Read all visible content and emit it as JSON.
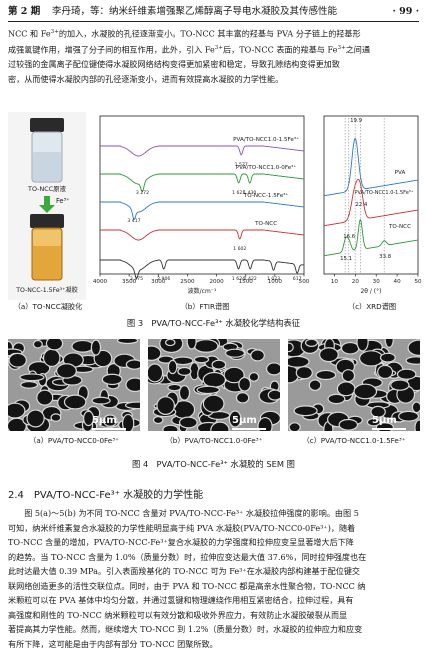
{
  "header": {
    "issue": "第 2 期",
    "running_title": "李丹琦，等：纳米纤维素增强聚乙烯醇离子导电水凝胶及其传感性能",
    "page_number": "· 99 ·"
  },
  "paragraph_top": {
    "lines": [
      [
        "NCC 和 Fe",
        "3+",
        "的加入，水凝胶的孔径逐渐变小。TO-NCC 其丰富的羟基与 PVA 分子链上的羟基形"
      ],
      [
        "成强氢键作用，增强了分子间的相互作用，此外，引入 Fe",
        "3+",
        "后，TO-NCC 表面的羧基与 Fe",
        "3+",
        "之间通"
      ],
      [
        "过较强的金属离子配位键使得水凝胶网络结构变得更加紧密和稳定，导致孔隙结构变得更加致"
      ],
      [
        "密，从而使得水凝胶内部的孔径逐渐变小，进而有效提高水凝胶的力学性能。"
      ]
    ]
  },
  "figure3": {
    "photo": {
      "label_top": "TO-NCC原液",
      "arrow_label": "Fe³⁺",
      "label_bottom": "TO-NCC-1.5Fe³⁺凝胶",
      "caption": "（a）TO-NCC凝胶化"
    },
    "ftir_caption": "（b）FTIR谱图",
    "xrd_caption": "（c）XRD谱图",
    "title": "图 3　PVA/TO-NCC-Fe³⁺ 水凝胶化学结构表征"
  },
  "chart_data": [
    {
      "type": "line",
      "xlabel": "波数/cm⁻¹",
      "ylabel": "",
      "xlim": [
        4000,
        500
      ],
      "x_ticks": [
        4000,
        3500,
        3000,
        2500,
        2000,
        1500,
        1000,
        500
      ],
      "grid": false,
      "series": [
        {
          "name": "PVA/TO-NCC1.0-1.5Fe³⁺",
          "color": "#8a52c8",
          "offset": 4,
          "peaks": [
            {
              "x": 1577,
              "label": "1 577"
            }
          ]
        },
        {
          "name": "PVA/TO-NCC1.0-0Fe³⁺",
          "color": "#2a9a3a",
          "offset": 3,
          "peaks": [
            {
              "x": 3272,
              "label": "3 272"
            },
            {
              "x": 1621,
              "label": "1 621"
            },
            {
              "x": 1430,
              "label": "1 430"
            }
          ]
        },
        {
          "name": "TO-NCC-1.5Fe³⁺",
          "color": "#2a7ad0",
          "offset": 2,
          "peaks": [
            {
              "x": 3417,
              "label": "3 417"
            }
          ]
        },
        {
          "name": "TO-NCC",
          "color": "#d03030",
          "offset": 1,
          "peaks": [
            {
              "x": 1602,
              "label": "1 602"
            }
          ]
        },
        {
          "name": "",
          "color": "#333333",
          "offset": 0,
          "peaks": [
            {
              "x": 3375,
              "label": "3 375"
            },
            {
              "x": 2906,
              "label": "2 906"
            },
            {
              "x": 1624,
              "label": "1 624"
            },
            {
              "x": 1422,
              "label": "1 422"
            },
            {
              "x": 1023,
              "label": "1 023"
            },
            {
              "x": 617,
              "label": "617"
            }
          ]
        }
      ]
    },
    {
      "type": "line",
      "xlabel": "2θ / (°)",
      "ylabel": "",
      "xlim": [
        5,
        50
      ],
      "x_ticks": [
        10,
        20,
        30,
        40,
        50
      ],
      "grid": false,
      "series": [
        {
          "name": "PVA",
          "color": "#2a7ad0",
          "offset": 2
        },
        {
          "name": "PVA/TO-NCC1.0-1.5Fe³⁺",
          "color": "#d03030",
          "offset": 1
        },
        {
          "name": "TO-NCC",
          "color": "#2a9a3a",
          "offset": 0
        }
      ],
      "annotations": [
        {
          "x": 19.9,
          "label": "19.9"
        },
        {
          "x": 15.1,
          "label": "15.1"
        },
        {
          "x": 16.6,
          "label": "16.6"
        },
        {
          "x": 22.4,
          "label": "22.4"
        },
        {
          "x": 33.8,
          "label": "33.8"
        }
      ]
    }
  ],
  "figure4": {
    "panels": [
      {
        "scale": "5μm",
        "caption": "（a）PVA/TO-NCC0-0Fe³⁺"
      },
      {
        "scale": "5μm",
        "caption": "（b）PVA/TO-NCC1.0-0Fe³⁺"
      },
      {
        "scale": "5μm",
        "caption": "（c）PVA/TO-NCC1.0-1.5Fe³⁺"
      }
    ],
    "title": "图 4　PVA/TO-NCC-Fe³⁺ 水凝胶的 SEM 图"
  },
  "section": {
    "number": "2.4",
    "title": "PVA/TO-NCC-Fe³⁺ 水凝胶的力学性能"
  },
  "paragraph_bottom": {
    "lines": [
      "　　图 5(a)～5(b) 为不同 TO-NCC 含量对 PVA/TO-NCC-Fe³⁺ 水凝胶拉伸强度的影响。由图 5",
      "可知，纳米纤维素复合水凝胶的力学性能明显高于纯 PVA 水凝胶(PVA/TO-NCC0-0Fe³⁺)，随着",
      "TO-NCC 含量的增加，PVA/TO-NCC-Fe³⁺复合水凝胶的力学强度和拉伸应变呈显著增大后下降",
      "的趋势。当 TO-NCC 含量为 1.0%（质量分数）时，拉伸应变达最大值 37.6%，同时拉伸强度也在",
      "此时达最大值 0.39 MPa。引入表面羧基化的 TO-NCC 可为 Fe³⁺在水凝胶内部构建基于配位键交",
      "联网络创造更多的活性交联位点。同时，由于 PVA 和 TO-NCC 都是高亲水性聚合物，TO-NCC 纳",
      "米颗粒可以在 PVA 基体中均匀分散，并通过氢键和物理缠绕作用相互紧密结合，拉伸过程，具有",
      "高强度和刚性的 TO-NCC 纳米颗粒可以有效分散和吸收外界应力，有效防止水凝胶破裂从而显",
      "著提高其力学性能。然而，继续增大 TO-NCC 到 1.2%（质量分数）时，水凝胶的拉伸应力和应变",
      "有所下降，这可能是由于内部有部分 TO-NCC 团聚所致。"
    ]
  }
}
